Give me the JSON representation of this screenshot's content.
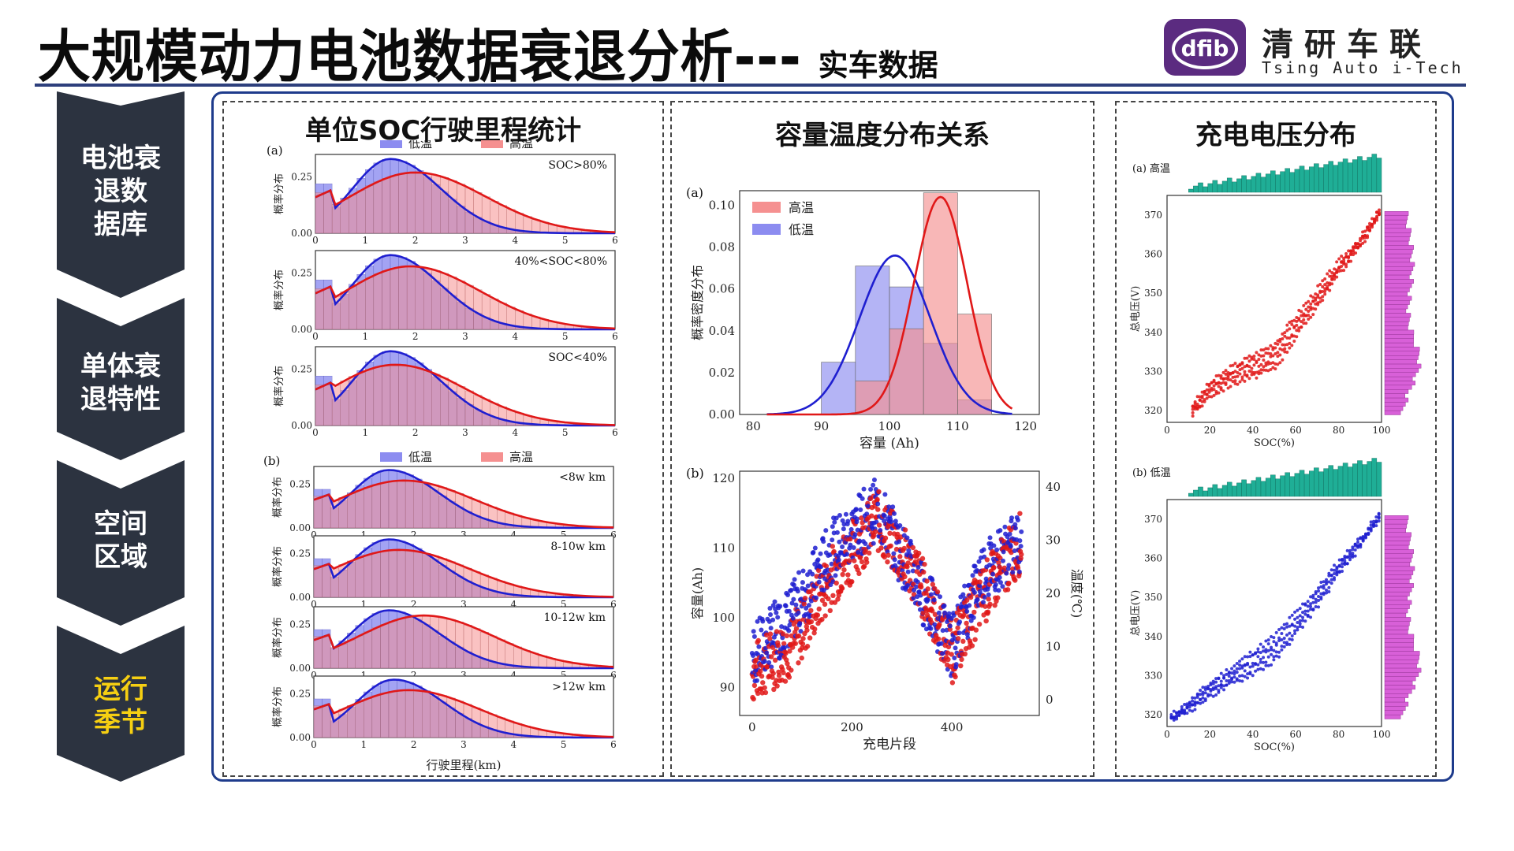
{
  "header": {
    "title_main": "大规模动力电池数据衰退分析---",
    "title_sub": "实车数据",
    "logo_mark_text": "dfib",
    "logo_cn": "清研车联",
    "logo_en": "Tsing Auto i-Tech"
  },
  "nav": {
    "items": [
      {
        "label": "电池衰退数据库",
        "lines": [
          "电池衰",
          "退数",
          "据库"
        ],
        "active": false
      },
      {
        "label": "单体衰退特性",
        "lines": [
          "单体衰",
          "退特性"
        ],
        "active": false
      },
      {
        "label": "空间区域",
        "lines": [
          "空间",
          "区域"
        ],
        "active": false
      },
      {
        "label": "运行季节",
        "lines": [
          "运行",
          "季节"
        ],
        "active": true
      }
    ]
  },
  "colors": {
    "low_temp": "#1f1fd0",
    "high_temp": "#e01818",
    "low_fill": "#8c8cf0",
    "high_fill": "#f59090",
    "teal": "#1fae96",
    "magenta": "#d860d8",
    "nav_bg": "#2c3340",
    "accent_yellow": "#f6cf12",
    "frame_blue": "#1e3b8c"
  },
  "panels": {
    "soc": {
      "title": "单位SOC行驶里程统计",
      "legend_low": "低温",
      "legend_high": "高温",
      "label_a": "(a)",
      "label_b": "(b)",
      "ylabel": "概率分布",
      "xlabel": "行驶里程(km)",
      "yticks": [
        "0.00",
        "0.25"
      ],
      "xticks": [
        "0",
        "1",
        "2",
        "3",
        "4",
        "5",
        "6"
      ],
      "subplots_a": [
        "SOC>80%",
        "40%<SOC<80%",
        "SOC<40%"
      ],
      "subplots_b": [
        "<8w km",
        "8-10w km",
        "10-12w km",
        ">12w km"
      ]
    },
    "capacity": {
      "title": "容量温度分布关系",
      "label_a": "(a)",
      "label_b": "(b)",
      "legend_high": "高温",
      "legend_low": "低温",
      "a_ylabel": "概率密度分布",
      "a_xlabel": "容量 (Ah)",
      "a_yticks": [
        "0.00",
        "0.02",
        "0.04",
        "0.06",
        "0.08",
        "0.10"
      ],
      "a_xticks": [
        "80",
        "90",
        "100",
        "110",
        "120"
      ],
      "b_ylabel": "容量(Ah)",
      "b_y2label": "温度(℃)",
      "b_xlabel": "充电片段",
      "b_yticks": [
        "90",
        "100",
        "110",
        "120"
      ],
      "b_y2ticks": [
        "0",
        "10",
        "20",
        "30",
        "40"
      ],
      "b_xticks": [
        "0",
        "200",
        "400"
      ]
    },
    "voltage": {
      "title": "充电电压分布",
      "label_high": "(a) 高温",
      "label_low": "(b) 低温",
      "ylabel": "总电压(V)",
      "xlabel": "SOC(%)",
      "yticks": [
        "320",
        "330",
        "340",
        "350",
        "360",
        "370"
      ],
      "xticks": [
        "0",
        "20",
        "40",
        "60",
        "80",
        "100"
      ]
    }
  },
  "chart_data": [
    {
      "type": "bar",
      "title": "单位SOC行驶里程统计 (a)",
      "xlabel": "行驶里程(km)",
      "ylabel": "概率分布",
      "xlim": [
        0,
        6
      ],
      "ylim": [
        0,
        0.35
      ],
      "legend": [
        "低温",
        "高温"
      ],
      "panels": [
        {
          "label": "SOC>80%",
          "series": [
            {
              "name": "低温",
              "peak_x": 1.5,
              "peak_y": 0.33
            },
            {
              "name": "高温",
              "peak_x": 2.0,
              "peak_y": 0.27
            }
          ]
        },
        {
          "label": "40%<SOC<80%",
          "series": [
            {
              "name": "低温",
              "peak_x": 1.5,
              "peak_y": 0.33
            },
            {
              "name": "高温",
              "peak_x": 1.9,
              "peak_y": 0.28
            }
          ]
        },
        {
          "label": "SOC<40%",
          "series": [
            {
              "name": "低温",
              "peak_x": 1.5,
              "peak_y": 0.33
            },
            {
              "name": "高温",
              "peak_x": 1.6,
              "peak_y": 0.27
            }
          ]
        }
      ]
    },
    {
      "type": "bar",
      "title": "单位SOC行驶里程统计 (b)",
      "xlabel": "行驶里程(km)",
      "ylabel": "概率分布",
      "xlim": [
        0,
        6
      ],
      "ylim": [
        0,
        0.35
      ],
      "legend": [
        "低温",
        "高温"
      ],
      "panels": [
        {
          "label": "<8w km",
          "series": [
            {
              "name": "低温",
              "peak_x": 1.5,
              "peak_y": 0.33
            },
            {
              "name": "高温",
              "peak_x": 1.8,
              "peak_y": 0.27
            }
          ]
        },
        {
          "label": "8-10w km",
          "series": [
            {
              "name": "低温",
              "peak_x": 1.5,
              "peak_y": 0.33
            },
            {
              "name": "高温",
              "peak_x": 1.7,
              "peak_y": 0.27
            }
          ]
        },
        {
          "label": "10-12w km",
          "series": [
            {
              "name": "低温",
              "peak_x": 1.5,
              "peak_y": 0.33
            },
            {
              "name": "高温",
              "peak_x": 2.2,
              "peak_y": 0.3
            }
          ]
        },
        {
          "label": ">12w km",
          "series": [
            {
              "name": "低温",
              "peak_x": 1.6,
              "peak_y": 0.33
            },
            {
              "name": "高温",
              "peak_x": 1.9,
              "peak_y": 0.27
            }
          ]
        }
      ]
    },
    {
      "type": "bar",
      "title": "容量温度分布关系 (a)",
      "xlabel": "容量 (Ah)",
      "ylabel": "概率密度分布",
      "xlim": [
        78,
        122
      ],
      "ylim": [
        0,
        0.107
      ],
      "legend": [
        "高温",
        "低温"
      ],
      "bin_edges": [
        90,
        95,
        100,
        105,
        110,
        115
      ],
      "series": [
        {
          "name": "低温",
          "values": [
            0.025,
            0.071,
            0.061,
            0.034,
            0.007
          ],
          "fit_mean": 100.8,
          "fit_peak": 0.076
        },
        {
          "name": "高温",
          "values": [
            0.0,
            0.016,
            0.041,
            0.106,
            0.048
          ],
          "fit_mean": 107.5,
          "fit_peak": 0.104
        }
      ]
    },
    {
      "type": "scatter",
      "title": "容量温度分布关系 (b)",
      "xlabel": "充电片段",
      "ylabel": "容量(Ah)",
      "y2label": "温度(℃)",
      "xlim": [
        -25,
        575
      ],
      "ylim": [
        86,
        121
      ],
      "y2lim": [
        -3,
        43
      ],
      "series": [
        {
          "name": "容量",
          "trend_x": [
            0,
            80,
            160,
            250,
            330,
            400,
            460,
            540
          ],
          "trend_y": [
            92,
            96,
            106,
            114,
            106,
            95,
            103,
            111
          ]
        },
        {
          "name": "温度",
          "trend_x": [
            0,
            80,
            160,
            250,
            330,
            400,
            460,
            540
          ],
          "trend_y": [
            8,
            16,
            28,
            36,
            22,
            10,
            24,
            30
          ]
        }
      ]
    },
    {
      "type": "scatter",
      "title": "充电电压分布 (a) 高温",
      "xlabel": "SOC(%)",
      "ylabel": "总电压(V)",
      "xlim": [
        0,
        100
      ],
      "ylim": [
        317,
        375
      ],
      "series": [
        {
          "name": "高温",
          "x": [
            10,
            20,
            30,
            40,
            50,
            60,
            70,
            80,
            90,
            100
          ],
          "y": [
            320,
            327,
            331,
            334,
            337,
            344,
            351,
            358,
            364,
            372
          ]
        }
      ]
    },
    {
      "type": "scatter",
      "title": "充电电压分布 (b) 低温",
      "xlabel": "SOC(%)",
      "ylabel": "总电压(V)",
      "xlim": [
        0,
        100
      ],
      "ylim": [
        317,
        375
      ],
      "series": [
        {
          "name": "低温",
          "x": [
            0,
            10,
            20,
            30,
            40,
            50,
            60,
            70,
            80,
            90,
            100
          ],
          "y": [
            319,
            323,
            328,
            332,
            336,
            340,
            346,
            352,
            359,
            365,
            372
          ]
        }
      ]
    }
  ]
}
